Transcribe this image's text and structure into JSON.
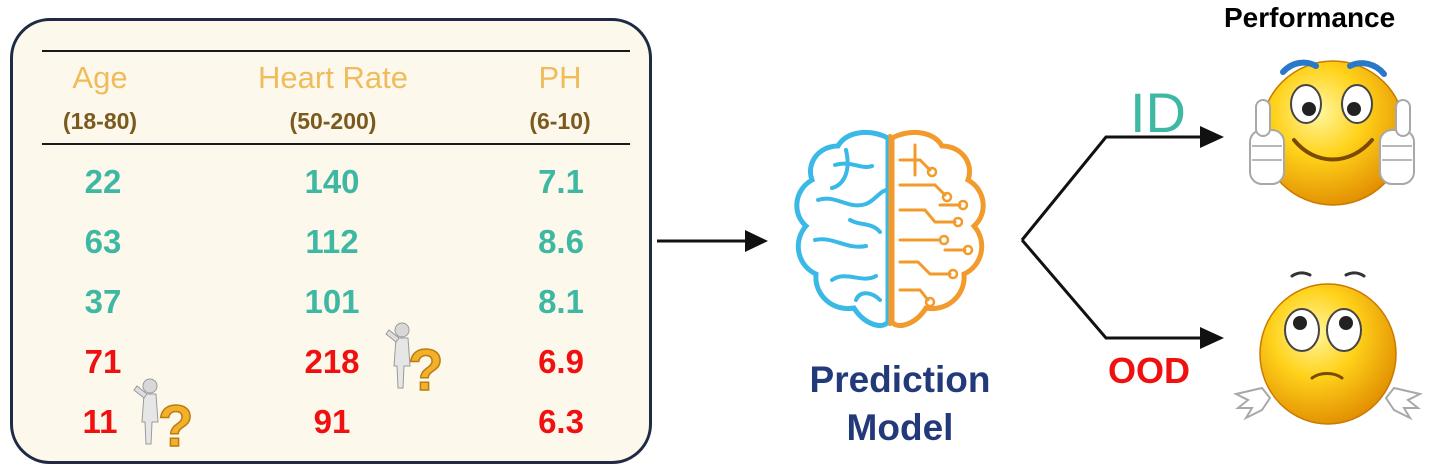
{
  "table": {
    "columns": [
      {
        "name": "Age",
        "range": "(18-80)"
      },
      {
        "name": "Heart Rate",
        "range": "(50-200)"
      },
      {
        "name": "PH",
        "range": "(6-10)"
      }
    ],
    "rows": [
      {
        "values": [
          "22",
          "140",
          "7.1"
        ],
        "status": "in"
      },
      {
        "values": [
          "63",
          "112",
          "8.6"
        ],
        "status": "in"
      },
      {
        "values": [
          "37",
          "101",
          "8.1"
        ],
        "status": "in"
      },
      {
        "values": [
          "71",
          "218",
          "6.9"
        ],
        "status": "out"
      },
      {
        "values": [
          "11",
          "91",
          "6.3"
        ],
        "status": "out"
      }
    ]
  },
  "model": {
    "line1": "Prediction",
    "line2": "Model"
  },
  "outputs": {
    "id_label": "ID",
    "ood_label": "OOD",
    "performance_label": "Performance"
  },
  "icons": {
    "brain": "brain-circuit-icon",
    "happy": "thumbs-up-smiley-icon",
    "confused": "shrugging-smiley-icon",
    "question": "question-figure-icon"
  },
  "colors": {
    "in_distribution": "#3fb8a3",
    "out_of_distribution": "#f01010",
    "header": "#f0bc5b",
    "range": "#7a5a1e",
    "model_text": "#233a7a",
    "brain_left": "#3bb9e6",
    "brain_right": "#f39a2c"
  }
}
